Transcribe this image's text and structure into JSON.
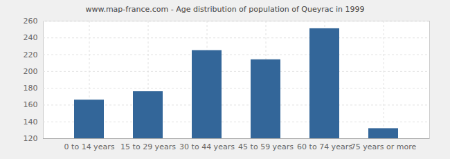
{
  "chart_data": {
    "type": "bar",
    "title": "www.map-france.com - Age distribution of population of Queyrac in 1999",
    "categories": [
      "0 to 14 years",
      "15 to 29 years",
      "30 to 44 years",
      "45 to 59 years",
      "60 to 74 years",
      "75 years or more"
    ],
    "values": [
      166,
      176,
      225,
      214,
      251,
      132
    ],
    "color": "#336699",
    "ylim": [
      120,
      260
    ],
    "yticks": [
      120,
      140,
      160,
      180,
      200,
      220,
      240,
      260
    ],
    "grid": true
  }
}
